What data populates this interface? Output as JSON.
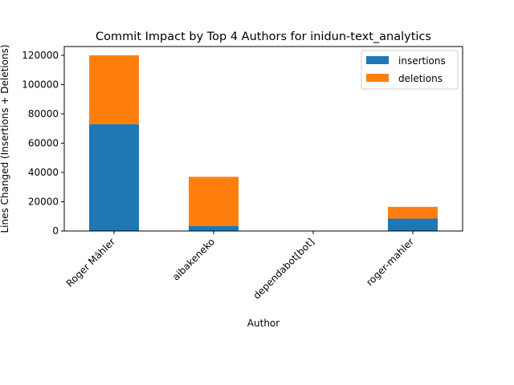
{
  "chart_data": {
    "type": "bar",
    "stacked": true,
    "title": "Commit Impact by Top 4 Authors for inidun-text_analytics",
    "xlabel": "Author",
    "ylabel": "Lines Changed (Insertions + Deletions)",
    "categories": [
      "Roger Mähler",
      "aibakeneko",
      "dependabot[bot]",
      "roger-mahler"
    ],
    "series": [
      {
        "name": "insertions",
        "color": "#1f77b4",
        "values": [
          73000,
          3500,
          0,
          8500
        ]
      },
      {
        "name": "deletions",
        "color": "#ff7f0e",
        "values": [
          47000,
          33500,
          0,
          8000
        ]
      }
    ],
    "ylim": [
      0,
      126000
    ],
    "yticks": [
      0,
      20000,
      40000,
      60000,
      80000,
      100000,
      120000
    ],
    "grid": false,
    "legend_position": "top-right"
  }
}
